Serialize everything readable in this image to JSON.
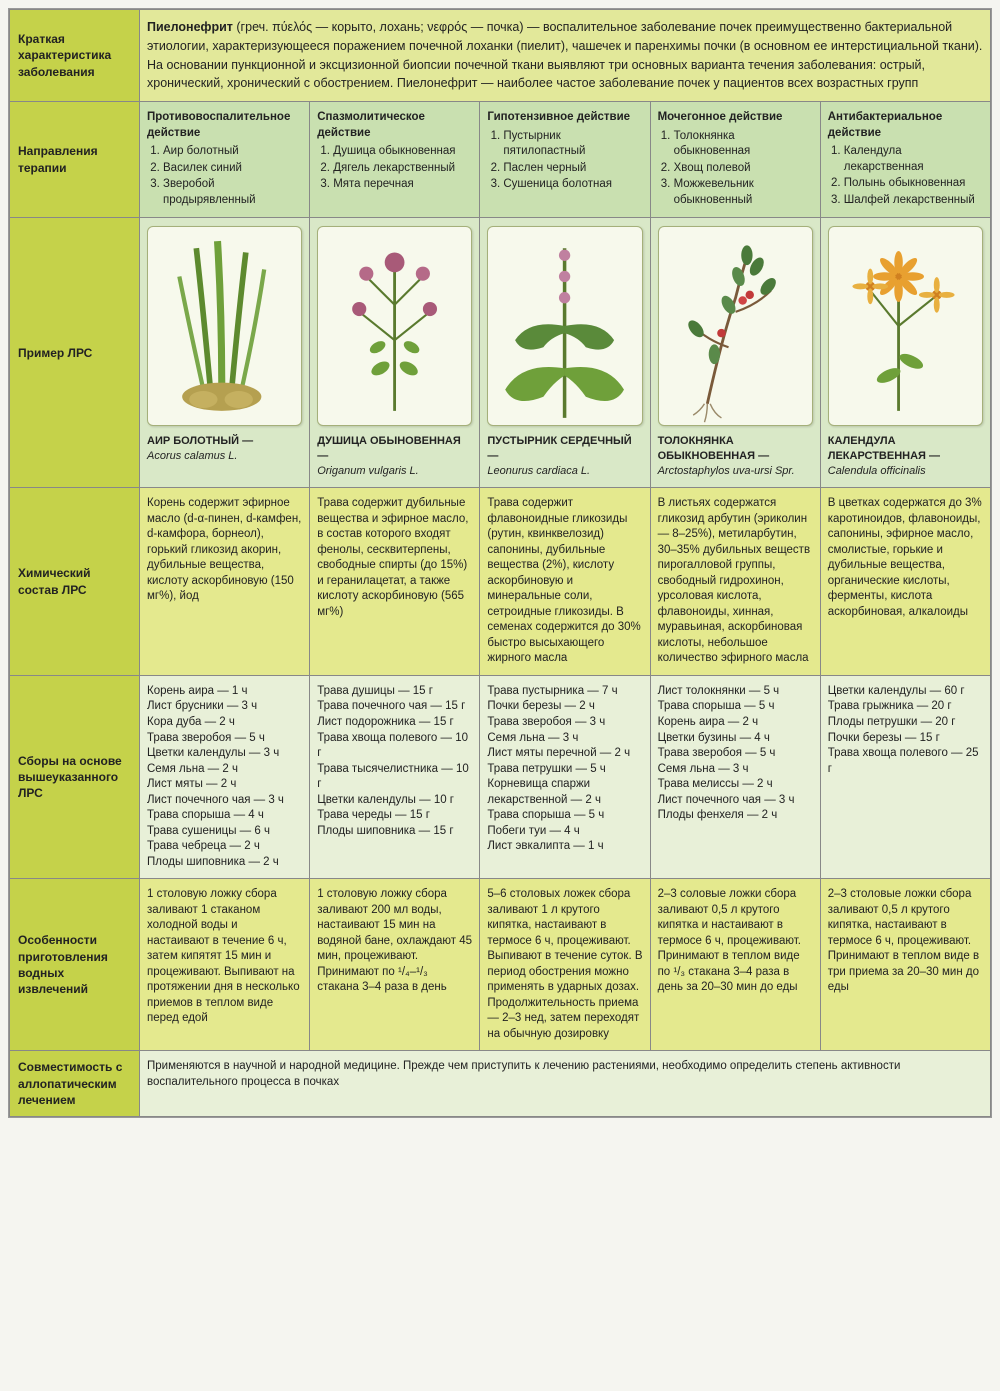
{
  "labels": {
    "row1": "Краткая характеристика заболевания",
    "row2": "Направления терапии",
    "row3": "Пример ЛРС",
    "row4": "Химический состав ЛРС",
    "row5": "Сборы на основе вышеуказанного ЛРС",
    "row6": "Особенности приготовления водных извлечений",
    "row7": "Совместимость с аллопатическим лечением"
  },
  "description": "Пиелонефрит (греч. πύελός — корыто, лохань; νεφρός — почка) — воспалительное заболевание почек преимущественно бактериальной этиологии, характеризующееся поражением почечной лоханки (пиелит), чашечек и паренхимы почки (в основном ее интерстициальной ткани). На основании пункционной и эксцизионной биопсии почечной ткани выявляют три основных варианта течения заболевания: острый, хронический, хронический с обострением. Пиелонефрит — наиболее частое заболевание почек у пациентов всех возрастных групп",
  "therapy": [
    {
      "head": "Противовоспалительное действие",
      "items": [
        "Аир болотный",
        "Василек синий",
        "Зверобой продырявленный"
      ]
    },
    {
      "head": "Спазмолитическое действие",
      "items": [
        "Душица обыкновенная",
        "Дягель лекарственный",
        "Мята перечная"
      ]
    },
    {
      "head": "Гипотензивное действие",
      "items": [
        "Пустырник пятилопастный",
        "Паслен черный",
        "Сушеница болотная"
      ]
    },
    {
      "head": "Мочегонное действие",
      "items": [
        "Толокнянка обыкновенная",
        "Хвощ полевой",
        "Можжевельник обыкновенный"
      ]
    },
    {
      "head": "Антибактериальное действие",
      "items": [
        "Календула лекарственная",
        "Полынь обыкновенная",
        "Шалфей лекарственный"
      ]
    }
  ],
  "examples": [
    {
      "ru": "АИР БОЛОТНЫЙ —",
      "lat": "Acorus calamus L."
    },
    {
      "ru": "ДУШИЦА ОБЫНОВЕННАЯ —",
      "lat": "Origanum vulgaris L."
    },
    {
      "ru": "ПУСТЫРНИК СЕРДЕЧНЫЙ —",
      "lat": "Leonurus cardiaca L."
    },
    {
      "ru": "ТОЛОКНЯНКА ОБЫКНОВЕННАЯ —",
      "lat": "Arctostaphylos uva-ursi Spr."
    },
    {
      "ru": "КАЛЕНДУЛА ЛЕКАРСТВЕННАЯ —",
      "lat": "Calendula officinalis"
    }
  ],
  "chem": [
    "Корень содержит эфирное масло (d-α-пинен, d-камфен, d-камфора, борнеол), горький гликозид акорин, дубильные вещества, кислоту аскорбиновую (150 мг%), йод",
    "Трава содержит дубильные вещества и эфирное масло, в состав которого входят фенолы, сесквитерпены, свободные спирты (до 15%) и геранилацетат, а также кислоту аскорбиновую (565 мг%)",
    "Трава содержит флавоноидные гликозиды (рутин, квинквелозид) сапонины, дубильные вещества (2%), кислоту аскорбиновую и минеральные соли, сетроидные гликозиды. В семенах содержится до 30% быстро высыхающего жирного масла",
    "В листьях содержатся гликозид арбутин (эриколин — 8–25%), метиларбутин, 30–35% дубильных веществ пирогалловой группы, свободный гидрохинон, урсоловая кислота, флавоноиды, хинная, муравьиная, аскорбиновая кислоты, небольшое количество эфирного масла",
    "В цветках содержатся до 3% каротиноидов, флавоноиды, сапонины, эфирное масло, смолистые, горькие и дубильные вещества, органические кислоты, ферменты, кислота аскорбиновая, алкалоиды"
  ],
  "sbory": [
    "Корень аира — 1 ч\nЛист брусники — 3 ч\nКора дуба — 2 ч\nТрава зверобоя — 5 ч\nЦветки календулы — 3 ч\nСемя льна — 2 ч\nЛист мяты — 2 ч\nЛист почечного чая — 3 ч\nТрава спорыша — 4 ч\nТрава сушеницы — 6 ч\nТрава чебреца — 2 ч\nПлоды шиповника — 2 ч",
    "Трава душицы — 15 г\nТрава почечного чая — 15 г\nЛист подорожника — 15 г\nТрава хвоща полевого — 10 г\nТрава тысячелистника — 10 г\nЦветки календулы — 10 г\nТрава череды — 15 г\nПлоды шиповника — 15 г",
    "Трава пустырника — 7 ч\nПочки березы — 2 ч\nТрава зверобоя — 3 ч\nСемя льна — 3 ч\nЛист мяты перечной — 2 ч\nТрава петрушки — 5 ч\nКорневища спаржи лекарственной — 2 ч\nТрава спорыша — 5 ч\nПобеги туи — 4 ч\nЛист эвкалипта — 1 ч",
    "Лист толокнянки — 5 ч\nТрава спорыша — 5 ч\nКорень аира — 2 ч\nЦветки бузины — 4 ч\nТрава зверобоя — 5 ч\nСемя льна — 3 ч\nТрава мелиссы — 2 ч\nЛист почечного чая — 3 ч\nПлоды фенхеля — 2 ч",
    "Цветки календулы — 60 г\nТрава грыжника — 20 г\nПлоды петрушки — 20 г\nПочки березы — 15 г\nТрава хвоща полевого — 25 г"
  ],
  "prep": [
    "1 столовую ложку сбора заливают 1 стаканом холодной воды и настаивают в течение 6 ч, затем кипятят 15 мин и процеживают. Выпивают на протяжении дня в несколько приемов в теплом виде перед едой",
    "1 столовую ложку сбора заливают 200 мл воды, настаивают 15 мин на водяной бане, охлаждают 45 мин, процеживают. Принимают по ¹/₄–¹/₃ стакана 3–4 раза в день",
    "5–6 столовых ложек сбора заливают 1 л крутого кипятка, настаивают в термосе 6 ч, процеживают. Выпивают в течение суток. В период обострения можно применять в ударных дозах. Продолжительность приема — 2–3 нед, затем переходят на обычную дозировку",
    "2–3 соловые ложки сбора заливают 0,5 л крутого кипятка и настаивают в термосе 6 ч, процеживают. Принимают в теплом виде по ¹/₃ стакана 3–4 раза в день за 20–30 мин до еды",
    "2–3 столовые ложки сбора заливают 0,5 л крутого кипятка, настаивают в термосе 6 ч, процеживают. Принимают в теплом виде в три приема за 20–30 мин до еды"
  ],
  "compat": "Применяются в научной и народной медицине. Прежде чем приступить к лечению растениями, необходимо определить степень активности воспалительного процесса в почках",
  "plant_svg": {
    "stem": "#5a7a2e",
    "leaf": "#6fa03a",
    "acorus_leaf": "#7aa84a",
    "acorus_root": "#b5a050",
    "origanum_flower": "#a85a78",
    "leonurus_leaf": "#5a8a3a",
    "arcto_leaf": "#4a7a3a",
    "arcto_berry": "#c23a3a",
    "calendula_flower": "#e8a030",
    "calendula_center": "#d08020"
  }
}
